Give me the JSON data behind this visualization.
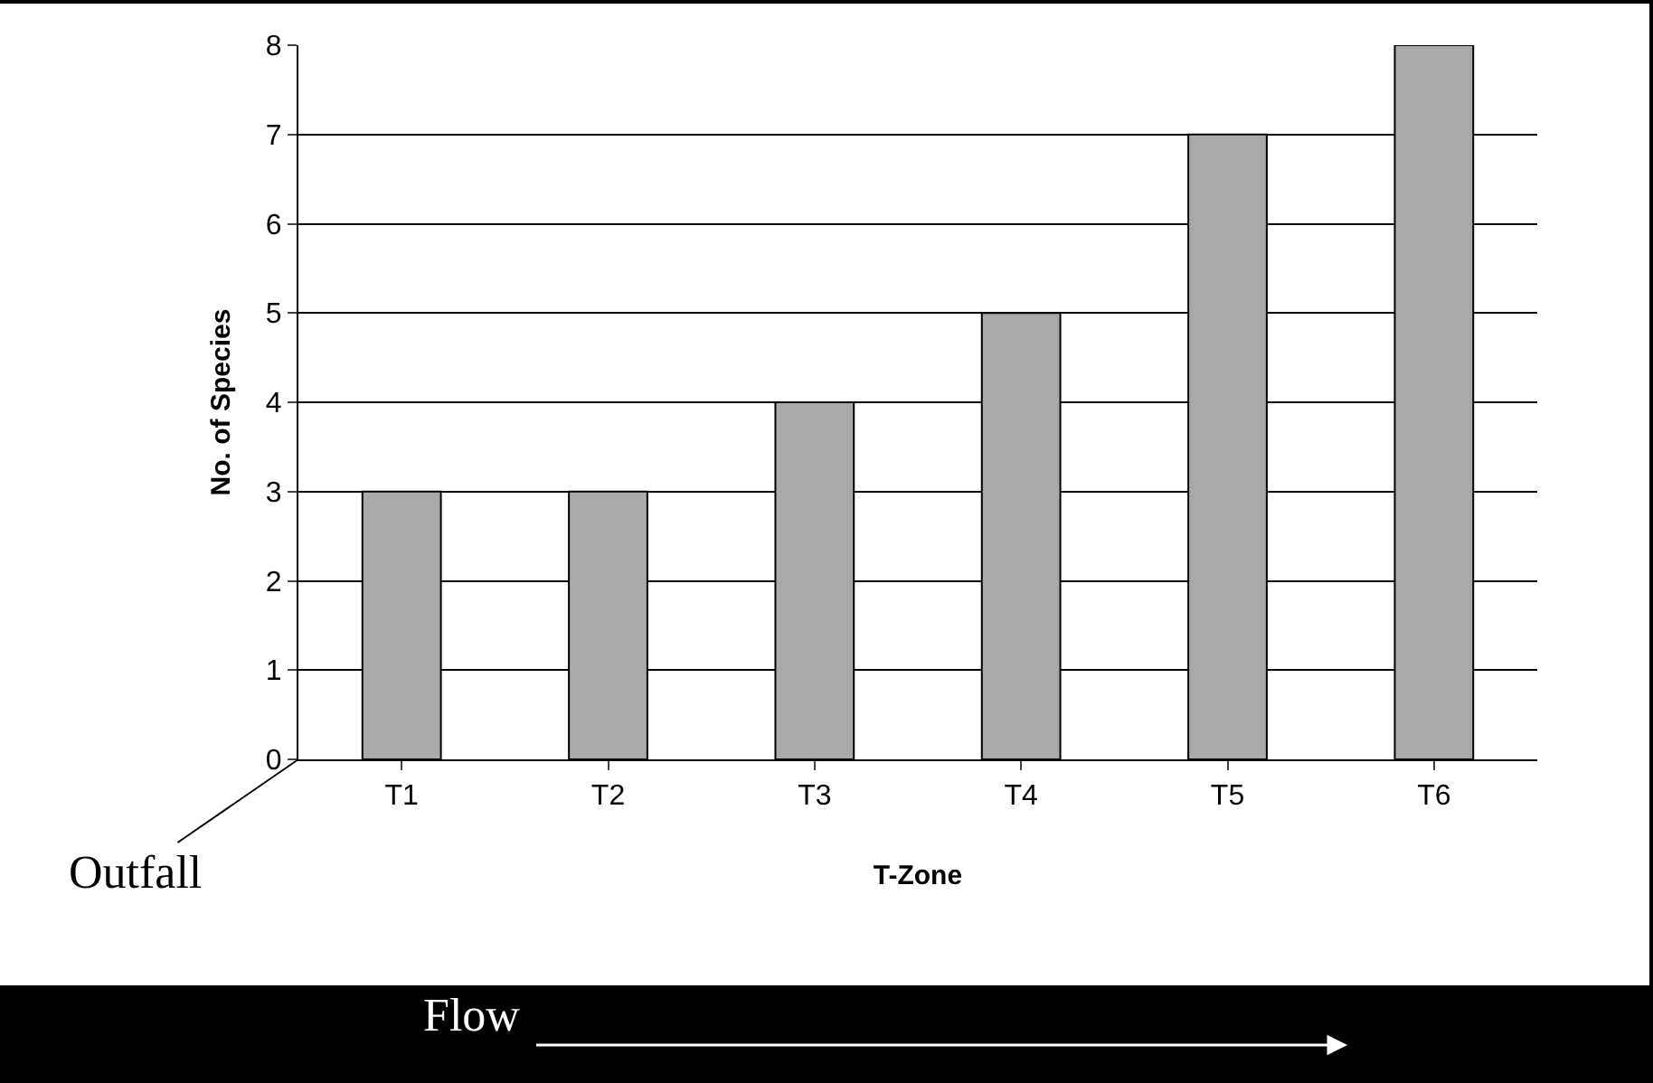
{
  "chart_data": {
    "type": "bar",
    "xlabel": "T-Zone",
    "ylabel": "No. of Species",
    "categories": [
      "T1",
      "T2",
      "T3",
      "T4",
      "T5",
      "T6"
    ],
    "values": [
      3,
      3,
      4,
      5,
      7,
      8
    ],
    "color": "#a9a9a9",
    "ylim": [
      0,
      8
    ],
    "yticks": [
      0,
      1,
      2,
      3,
      4,
      5,
      6,
      7,
      8
    ],
    "grid": "y",
    "legend": false,
    "annotations": [
      "Outfall",
      "Flow"
    ]
  }
}
